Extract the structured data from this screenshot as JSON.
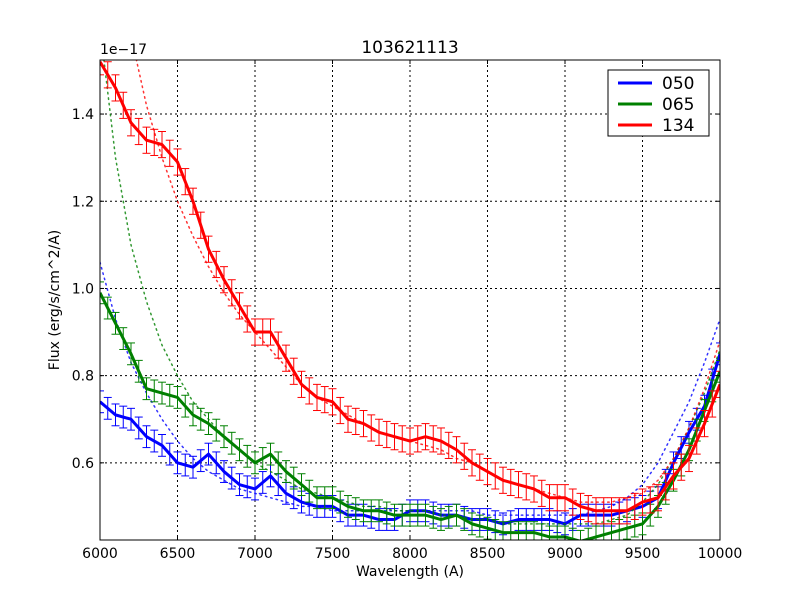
{
  "chart_data": {
    "type": "line",
    "title": "103621113",
    "xlabel": "Wavelength (A)",
    "ylabel": "Flux (erg/s/cm^2/A)",
    "y_offset_label": "1e−17",
    "xlim": [
      6000,
      10000
    ],
    "ylim": [
      0.423,
      1.524
    ],
    "xticks": [
      6000,
      6500,
      7000,
      7500,
      8000,
      8500,
      9000,
      9500,
      10000
    ],
    "xtick_labels": [
      "6000",
      "6500",
      "7000",
      "7500",
      "8000",
      "8500",
      "9000",
      "9500",
      "10000"
    ],
    "yticks": [
      0.6,
      0.8,
      1.0,
      1.2,
      1.4
    ],
    "ytick_labels": [
      "0.6",
      "0.8",
      "1.0",
      "1.2",
      "1.4"
    ],
    "grid": true,
    "legend_position": "upper right",
    "x": [
      6000,
      6100,
      6200,
      6300,
      6400,
      6500,
      6600,
      6700,
      6800,
      6900,
      7000,
      7100,
      7200,
      7300,
      7400,
      7500,
      7600,
      7700,
      7800,
      7900,
      8000,
      8100,
      8200,
      8300,
      8400,
      8500,
      8600,
      8700,
      8800,
      8900,
      9000,
      9100,
      9200,
      9300,
      9400,
      9500,
      9600,
      9700,
      9800,
      9900,
      10000
    ],
    "series": [
      {
        "name": "050",
        "color": "#0000ff",
        "values": [
          0.74,
          0.71,
          0.7,
          0.66,
          0.64,
          0.6,
          0.59,
          0.62,
          0.58,
          0.55,
          0.54,
          0.57,
          0.53,
          0.51,
          0.5,
          0.5,
          0.48,
          0.48,
          0.47,
          0.47,
          0.49,
          0.49,
          0.48,
          0.48,
          0.47,
          0.47,
          0.46,
          0.47,
          0.47,
          0.47,
          0.46,
          0.48,
          0.48,
          0.48,
          0.49,
          0.5,
          0.52,
          0.6,
          0.67,
          0.73,
          0.85
        ],
        "error": 0.025,
        "fit": [
          1.06,
          0.93,
          0.83,
          0.76,
          0.7,
          0.65,
          0.61,
          0.58,
          0.56,
          0.54,
          0.53,
          0.52,
          0.51,
          0.5,
          0.5,
          0.49,
          0.49,
          0.49,
          0.49,
          0.49,
          0.49,
          0.49,
          0.49,
          0.49,
          0.49,
          0.48,
          0.48,
          0.48,
          0.48,
          0.48,
          0.48,
          0.48,
          0.49,
          0.5,
          0.52,
          0.55,
          0.6,
          0.67,
          0.74,
          0.83,
          0.93
        ]
      },
      {
        "name": "065",
        "color": "#008000",
        "values": [
          0.99,
          0.92,
          0.85,
          0.77,
          0.76,
          0.75,
          0.71,
          0.69,
          0.66,
          0.63,
          0.6,
          0.62,
          0.58,
          0.55,
          0.52,
          0.52,
          0.5,
          0.49,
          0.49,
          0.48,
          0.48,
          0.48,
          0.47,
          0.48,
          0.46,
          0.45,
          0.44,
          0.44,
          0.44,
          0.43,
          0.43,
          0.42,
          0.43,
          0.44,
          0.45,
          0.46,
          0.5,
          0.56,
          0.63,
          0.72,
          0.81
        ],
        "error": 0.025,
        "fit": [
          1.6,
          1.3,
          1.1,
          0.97,
          0.87,
          0.8,
          0.74,
          0.7,
          0.66,
          0.63,
          0.6,
          0.58,
          0.56,
          0.54,
          0.53,
          0.52,
          0.51,
          0.5,
          0.5,
          0.49,
          0.49,
          0.49,
          0.48,
          0.48,
          0.47,
          0.47,
          0.46,
          0.46,
          0.46,
          0.46,
          0.46,
          0.46,
          0.46,
          0.47,
          0.48,
          0.51,
          0.55,
          0.61,
          0.68,
          0.76,
          0.86
        ]
      },
      {
        "name": "134",
        "color": "#ff0000",
        "values": [
          1.52,
          1.46,
          1.38,
          1.34,
          1.33,
          1.29,
          1.2,
          1.09,
          1.02,
          0.96,
          0.9,
          0.9,
          0.84,
          0.78,
          0.75,
          0.74,
          0.7,
          0.69,
          0.67,
          0.66,
          0.65,
          0.66,
          0.65,
          0.63,
          0.6,
          0.58,
          0.56,
          0.55,
          0.54,
          0.52,
          0.52,
          0.5,
          0.49,
          0.49,
          0.49,
          0.51,
          0.52,
          0.57,
          0.61,
          0.69,
          0.78
        ],
        "error": 0.03,
        "fit": [
          2.1,
          1.8,
          1.58,
          1.42,
          1.3,
          1.2,
          1.12,
          1.05,
          0.99,
          0.94,
          0.9,
          0.86,
          0.82,
          0.78,
          0.75,
          0.73,
          0.71,
          0.69,
          0.67,
          0.66,
          0.65,
          0.64,
          0.63,
          0.61,
          0.6,
          0.58,
          0.56,
          0.55,
          0.54,
          0.53,
          0.52,
          0.51,
          0.51,
          0.51,
          0.52,
          0.53,
          0.56,
          0.61,
          0.68,
          0.77,
          0.88
        ]
      }
    ]
  },
  "legend": {
    "items": [
      {
        "label": "050",
        "color": "#0000ff"
      },
      {
        "label": "065",
        "color": "#008000"
      },
      {
        "label": "134",
        "color": "#ff0000"
      }
    ]
  }
}
